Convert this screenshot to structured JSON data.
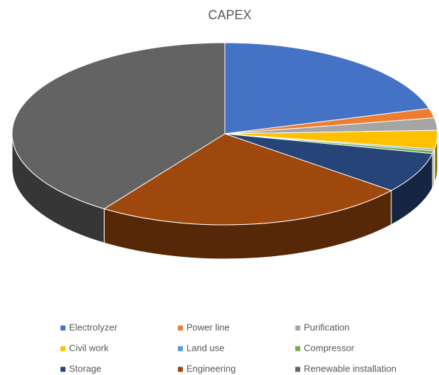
{
  "chart_data": {
    "type": "pie",
    "title": "CAPEX",
    "categories": [
      "Electrolyzer",
      "Power line",
      "Purification",
      "Civil work",
      "Land use",
      "Compressor",
      "Storage",
      "Engineering",
      "Renewable installation"
    ],
    "values": [
      20.5,
      1.7,
      2.2,
      3.3,
      0.3,
      0.5,
      7.2,
      23.9,
      40.4
    ],
    "colors": [
      "#4472c4",
      "#ed7d31",
      "#a5a5a5",
      "#ffc000",
      "#5b9bd5",
      "#70ad47",
      "#264478",
      "#9e480e",
      "#636363"
    ],
    "legend": "bottom"
  }
}
